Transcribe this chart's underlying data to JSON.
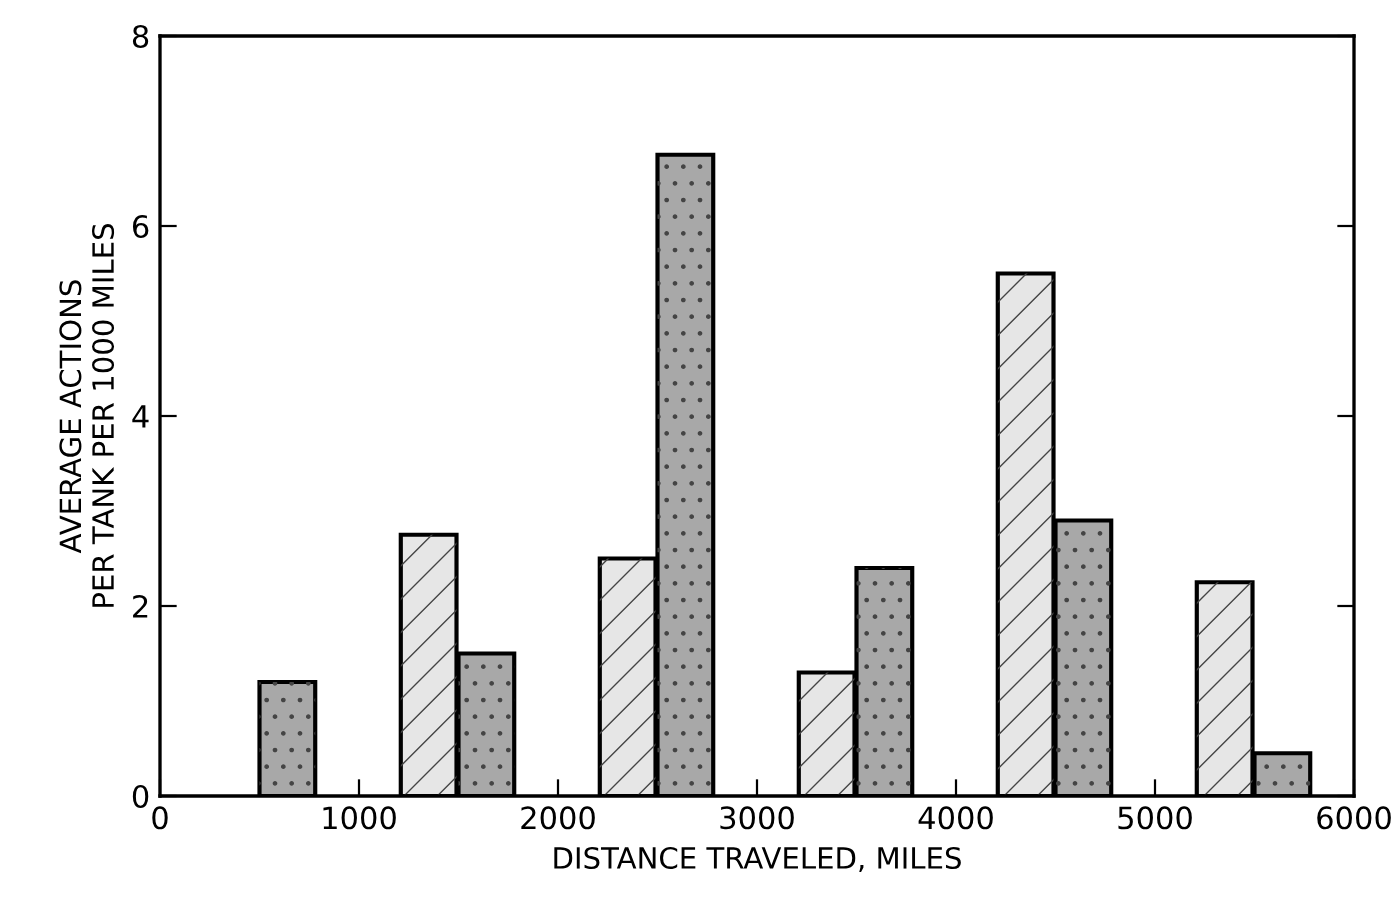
{
  "chart_data": {
    "type": "bar",
    "xlabel": "DISTANCE TRAVELED, MILES",
    "ylabel": "AVERAGE ACTIONS\nPER TANK PER 1000 MILES",
    "xlim": [
      0,
      6000
    ],
    "xticks": [
      0,
      1000,
      2000,
      3000,
      4000,
      5000,
      6000
    ],
    "ylim": [
      0,
      8
    ],
    "yticks": [
      0,
      2,
      4,
      6,
      8
    ],
    "grid": false,
    "legend": false,
    "series": [
      {
        "color": "#e6e6e6",
        "x": [
          1350,
          2350,
          3350,
          4350,
          5350
        ],
        "values": [
          2.75,
          2.5,
          1.3,
          5.5,
          2.25
        ]
      },
      {
        "color": "#a8a8a8",
        "x": [
          640,
          1640,
          2640,
          3640,
          4640,
          5640
        ],
        "values": [
          1.2,
          1.5,
          6.75,
          2.4,
          2.9,
          0.45
        ]
      }
    ]
  }
}
